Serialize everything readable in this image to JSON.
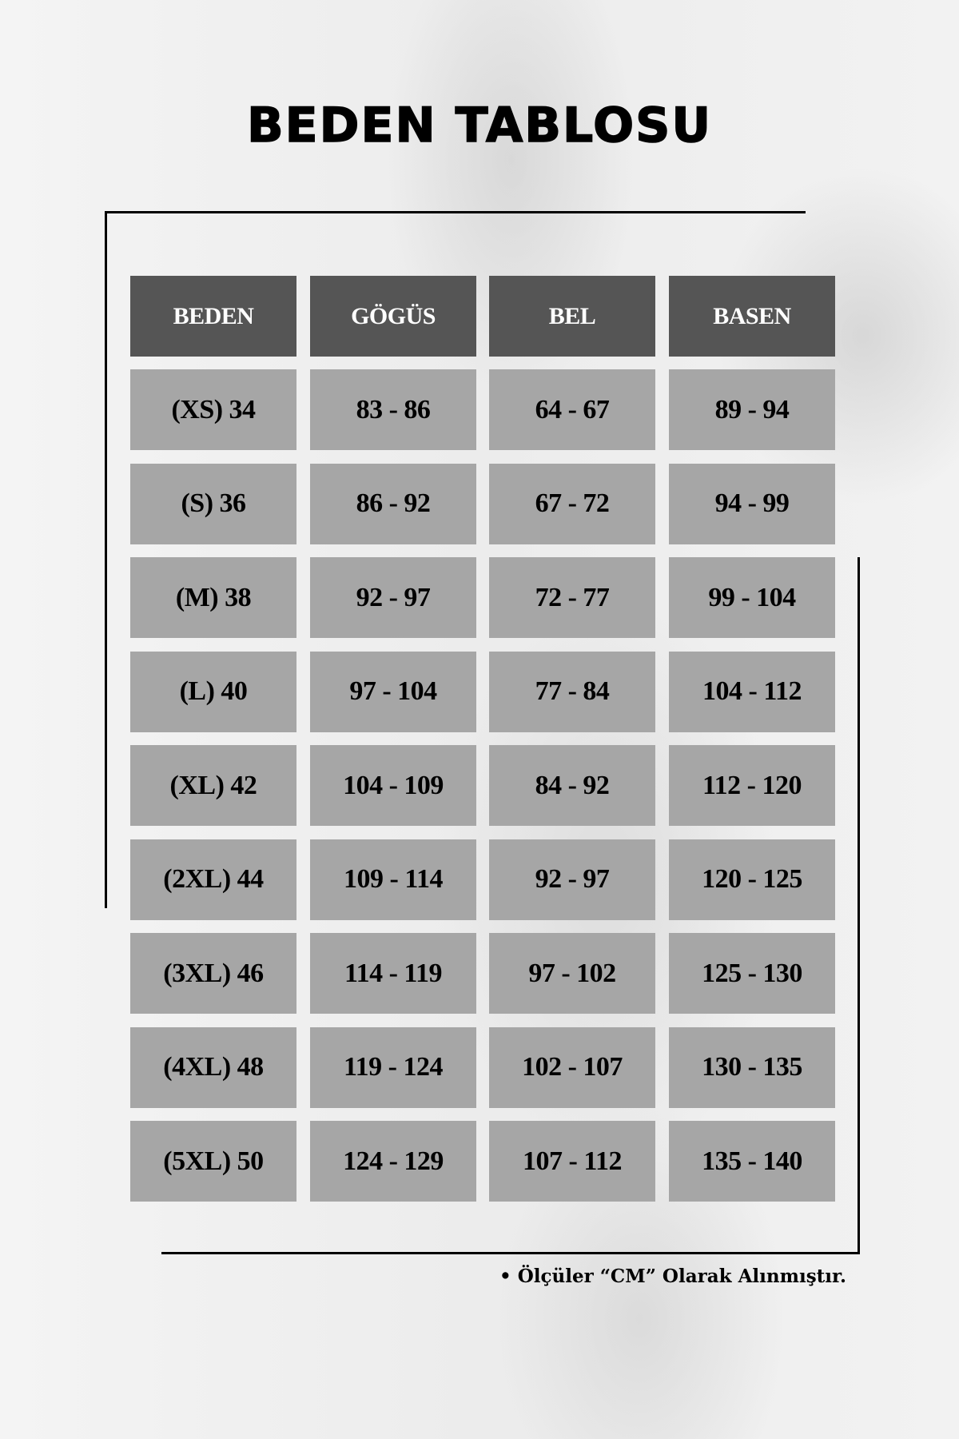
{
  "title": "BEDEN TABLOSU",
  "colors": {
    "header_bg": "#555555",
    "cell_bg": "#a6a6a6",
    "header_text": "#ffffff",
    "cell_text": "#000000"
  },
  "table": {
    "headers": [
      "BEDEN",
      "GÖGÜS",
      "BEL",
      "BASEN"
    ],
    "rows": [
      [
        "(XS) 34",
        "83 - 86",
        "64 - 67",
        "89 - 94"
      ],
      [
        "(S) 36",
        "86 - 92",
        "67 - 72",
        "94 - 99"
      ],
      [
        "(M) 38",
        "92 - 97",
        "72 - 77",
        "99 - 104"
      ],
      [
        "(L) 40",
        "97 - 104",
        "77 - 84",
        "104 - 112"
      ],
      [
        "(XL) 42",
        "104 - 109",
        "84 - 92",
        "112 - 120"
      ],
      [
        "(2XL) 44",
        "109 - 114",
        "92 - 97",
        "120 - 125"
      ],
      [
        "(3XL) 46",
        "114 - 119",
        "97 - 102",
        "125 - 130"
      ],
      [
        "(4XL) 48",
        "119 - 124",
        "102 - 107",
        "130 - 135"
      ],
      [
        "(5XL) 50",
        "124 - 129",
        "107 - 112",
        "135 - 140"
      ]
    ]
  },
  "note": "• Ölçüler “CM” Olarak Alınmıştır."
}
